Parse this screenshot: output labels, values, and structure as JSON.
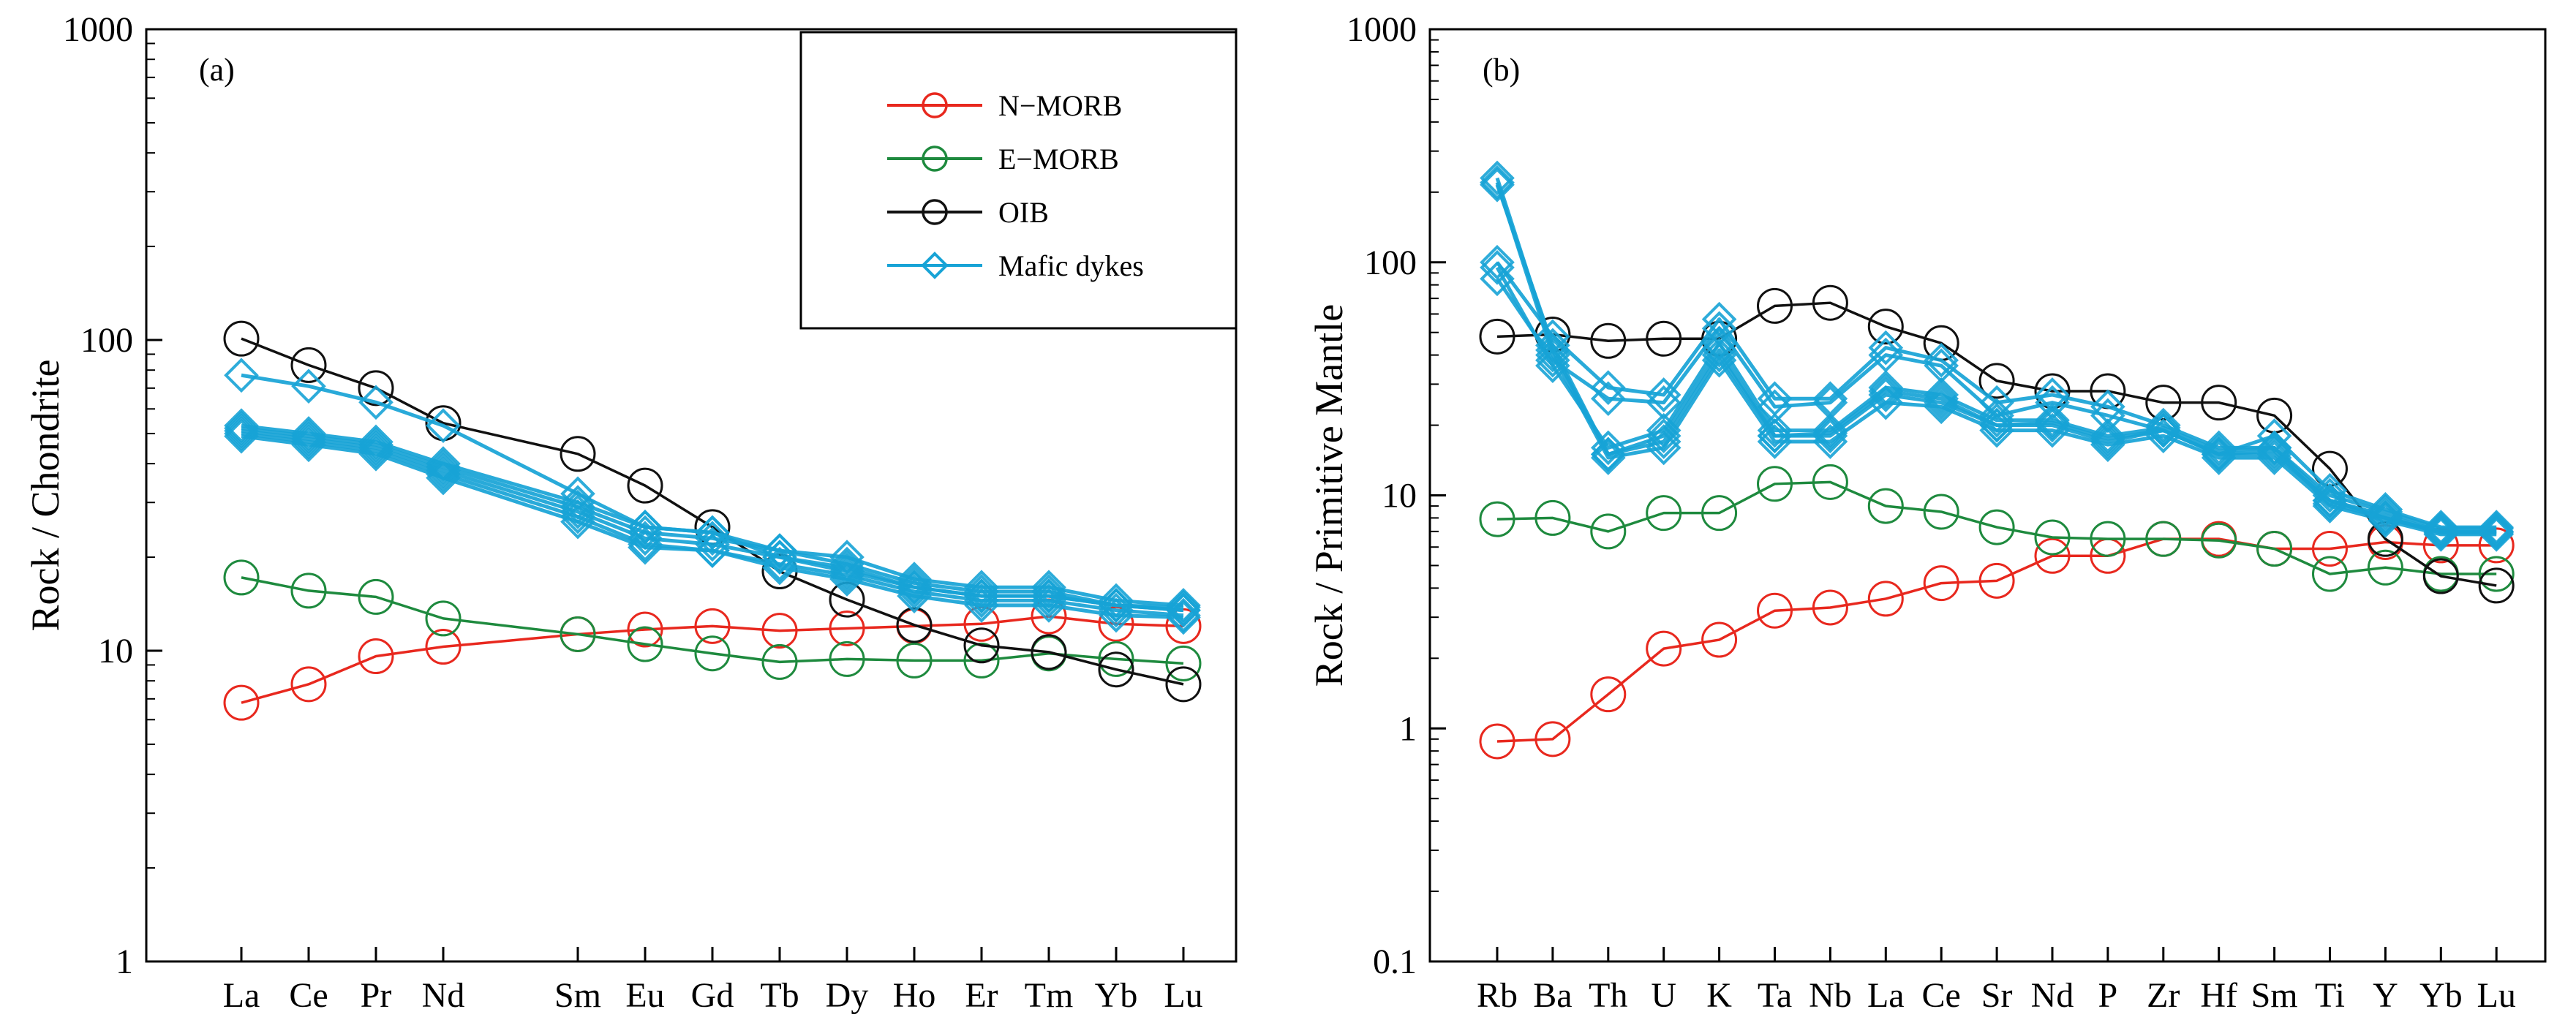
{
  "chart_data": [
    {
      "type": "line",
      "panel_label": "(a)",
      "ylabel": "Rock / Chondrite",
      "yscale": "log",
      "ylim": [
        1,
        1000
      ],
      "yticks": [
        "1",
        "10",
        "100",
        "1000"
      ],
      "categories": [
        "La",
        "Ce",
        "Pr",
        "Nd",
        "Sm",
        "Eu",
        "Gd",
        "Tb",
        "Dy",
        "Ho",
        "Er",
        "Tm",
        "Yb",
        "Lu"
      ],
      "x_index": [
        0,
        1,
        2,
        3,
        5,
        6,
        7,
        8,
        9,
        10,
        11,
        12,
        13,
        14
      ],
      "legend_position": "top-right",
      "series": [
        {
          "name": "N-MORB",
          "color": "#e8281e",
          "marker": "circle",
          "values": [
            6.8,
            7.8,
            9.6,
            10.3,
            11.3,
            11.7,
            12.0,
            11.6,
            11.8,
            12.0,
            12.2,
            12.9,
            12.2,
            12.0
          ]
        },
        {
          "name": "E-MORB",
          "color": "#1e8a3e",
          "marker": "circle",
          "values": [
            17.2,
            15.6,
            14.9,
            12.7,
            11.3,
            10.5,
            9.8,
            9.2,
            9.4,
            9.3,
            9.3,
            9.8,
            9.4,
            9.1
          ]
        },
        {
          "name": "OIB",
          "color": "#111111",
          "marker": "circle",
          "values": [
            101,
            83,
            70,
            54,
            43,
            34,
            25,
            18,
            14.6,
            12.1,
            10.4,
            9.9,
            8.7,
            7.8
          ]
        },
        {
          "name": "Mafic dyke 1",
          "color": "#17a3d6",
          "marker": "diamond",
          "values": [
            77,
            71,
            63,
            53,
            32,
            25,
            24,
            20,
            18,
            16,
            15,
            15,
            14,
            13.5
          ]
        },
        {
          "name": "Mafic dyke 2",
          "color": "#17a3d6",
          "marker": "diamond",
          "values": [
            52,
            49,
            46,
            39,
            29,
            24,
            23,
            21,
            19,
            16.5,
            15.5,
            15.5,
            14,
            13.5
          ]
        },
        {
          "name": "Mafic dyke 3",
          "color": "#17a3d6",
          "marker": "diamond",
          "values": [
            50,
            47,
            44,
            37,
            27,
            22,
            21,
            19,
            17.5,
            15.5,
            14.5,
            14.5,
            13.5,
            13
          ]
        },
        {
          "name": "Mafic dyke 4",
          "color": "#17a3d6",
          "marker": "diamond",
          "values": [
            53,
            50,
            47,
            40,
            30,
            25,
            24,
            21,
            20,
            17,
            16,
            16,
            14.5,
            14
          ]
        },
        {
          "name": "Mafic dyke 5",
          "color": "#17a3d6",
          "marker": "diamond",
          "values": [
            51,
            48,
            45,
            38,
            28,
            23,
            22,
            20,
            18.5,
            16,
            15,
            15,
            14,
            13.8
          ]
        },
        {
          "name": "Mafic dyke 6",
          "color": "#17a3d6",
          "marker": "diamond",
          "values": [
            49,
            46,
            43,
            36,
            26,
            21.5,
            21,
            18.5,
            17,
            15,
            14,
            14,
            13,
            12.8
          ]
        }
      ],
      "legend": [
        {
          "label": "N−MORB",
          "color": "#e8281e",
          "marker": "circle"
        },
        {
          "label": "E−MORB",
          "color": "#1e8a3e",
          "marker": "circle"
        },
        {
          "label": "OIB",
          "color": "#111111",
          "marker": "circle"
        },
        {
          "label": "Mafic dykes",
          "color": "#17a3d6",
          "marker": "diamond"
        }
      ]
    },
    {
      "type": "line",
      "panel_label": "(b)",
      "ylabel": "Rock / Primitive Mantle",
      "yscale": "log",
      "ylim": [
        0.1,
        1000
      ],
      "yticks": [
        "0.1",
        "1",
        "10",
        "100",
        "1000"
      ],
      "categories": [
        "Rb",
        "Ba",
        "Th",
        "U",
        "K",
        "Ta",
        "Nb",
        "La",
        "Ce",
        "Sr",
        "Nd",
        "P",
        "Zr",
        "Hf",
        "Sm",
        "Ti",
        "Y",
        "Yb",
        "Lu"
      ],
      "x_index": [
        0,
        1,
        2,
        3,
        4,
        5,
        6,
        7,
        8,
        9,
        10,
        11,
        12,
        13,
        14,
        15,
        16,
        17,
        18
      ],
      "series": [
        {
          "name": "N-MORB",
          "color": "#e8281e",
          "marker": "circle",
          "values": [
            0.88,
            0.9,
            1.4,
            2.2,
            2.4,
            3.2,
            3.3,
            3.6,
            4.2,
            4.3,
            5.5,
            5.5,
            6.5,
            6.5,
            5.9,
            5.9,
            6.3,
            6.1,
            6.1
          ]
        },
        {
          "name": "E-MORB",
          "color": "#1e8a3e",
          "marker": "circle",
          "values": [
            7.9,
            8.0,
            7.0,
            8.4,
            8.4,
            11.2,
            11.4,
            9.0,
            8.5,
            7.3,
            6.6,
            6.5,
            6.5,
            6.4,
            5.9,
            4.6,
            4.9,
            4.6,
            4.6
          ]
        },
        {
          "name": "OIB",
          "color": "#111111",
          "marker": "circle",
          "values": [
            48,
            49,
            46,
            47,
            47,
            65,
            67,
            53,
            45,
            31,
            28,
            28,
            25,
            25,
            22,
            13,
            6.5,
            4.5,
            4.1
          ]
        },
        {
          "name": "Mafic dyke 1",
          "color": "#17a3d6",
          "marker": "diamond",
          "values": [
            230,
            42,
            15,
            17,
            40,
            18,
            18,
            27,
            25,
            20,
            20,
            17,
            19,
            15,
            15,
            9.5,
            8,
            7,
            7
          ]
        },
        {
          "name": "Mafic dyke 2",
          "color": "#17a3d6",
          "marker": "diamond",
          "values": [
            220,
            40,
            14.5,
            16,
            38,
            17,
            17,
            25,
            24,
            19,
            19,
            16.5,
            18,
            14.5,
            14.5,
            9,
            7.8,
            6.8,
            6.8
          ]
        },
        {
          "name": "Mafic dyke 3",
          "color": "#17a3d6",
          "marker": "diamond",
          "values": [
            100,
            48,
            29,
            27,
            57,
            26,
            26,
            43,
            38,
            25,
            27,
            24,
            20,
            16,
            16,
            10,
            8.5,
            7.2,
            7.2
          ]
        },
        {
          "name": "Mafic dyke 4",
          "color": "#17a3d6",
          "marker": "diamond",
          "values": [
            85,
            38,
            26,
            25,
            52,
            24,
            25,
            40,
            36,
            22,
            25,
            22,
            19,
            15,
            18,
            10.5,
            8.7,
            7.3,
            7.3
          ]
        },
        {
          "name": "Mafic dyke 5",
          "color": "#17a3d6",
          "marker": "diamond",
          "values": [
            95,
            36,
            16,
            19,
            45,
            19,
            19,
            29,
            27,
            21,
            21,
            18,
            19.5,
            15.5,
            16,
            9.5,
            8.2,
            7,
            7
          ]
        },
        {
          "name": "Mafic dyke 6",
          "color": "#17a3d6",
          "marker": "diamond",
          "values": [
            215,
            44,
            15,
            18,
            42,
            18,
            18.5,
            28,
            26,
            20,
            20.5,
            17.5,
            19,
            15,
            15.5,
            9.2,
            8,
            6.9,
            6.9
          ]
        }
      ]
    }
  ]
}
